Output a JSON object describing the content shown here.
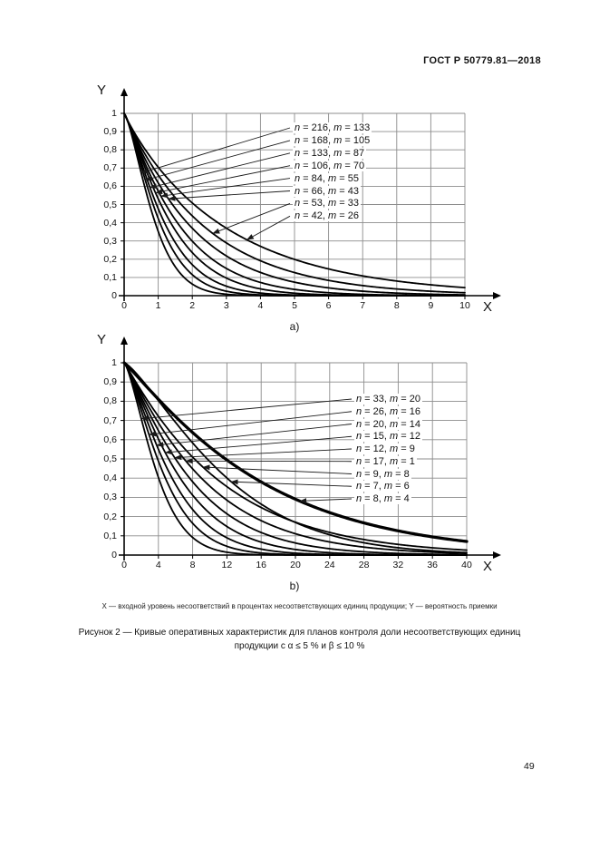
{
  "page": {
    "header": "ГОСТ Р 50779.81—2018",
    "footnote": "X — входной уровень несоответствий в процентах несоответствующих единиц продукции; Y — вероятность приемки",
    "figure_caption_line1": "Рисунок 2 — Кривые оперативных характеристик для планов контроля доли несоответствующих единиц",
    "figure_caption_line2": "продукции с α ≤ 5 % и β ≤ 10 %",
    "page_number": "49"
  },
  "colors": {
    "curve": "#000000",
    "grid": "#8c8c8c",
    "axis": "#000000",
    "callout": "#1a1a1a",
    "text": "#111111",
    "background": "#ffffff"
  },
  "chart_data": [
    {
      "id": "a",
      "type": "line",
      "sublabel": "a)",
      "x_axis_label": "X",
      "y_axis_label": "Y",
      "xlim": [
        0,
        10
      ],
      "ylim": [
        0,
        1
      ],
      "x_ticks": [
        0,
        1,
        2,
        3,
        4,
        5,
        6,
        7,
        8,
        9,
        10
      ],
      "y_ticks": [
        "0",
        "0,1",
        "0,2",
        "0,3",
        "0,4",
        "0,5",
        "0,6",
        "0,7",
        "0,8",
        "0,9",
        "1"
      ],
      "grid": true,
      "legend_position": "inside upper right, items connected to curves by arrows",
      "curve_model": "y = exp(-(x/a)^k); OC curve, y-probability of acceptance vs x-percent nonconforming",
      "series": [
        {
          "label": "n = 216, m = 133",
          "n": 216,
          "m": 133,
          "a": 0.97,
          "k": 1.4,
          "x_half": 0.75,
          "arrow_x": 0.5,
          "thick": false
        },
        {
          "label": "n = 168, m = 105",
          "n": 168,
          "m": 105,
          "a": 1.12,
          "k": 1.33,
          "x_half": 0.85,
          "arrow_x": 0.62,
          "thick": false
        },
        {
          "label": "n = 133, m = 87",
          "n": 133,
          "m": 87,
          "a": 1.27,
          "k": 1.26,
          "x_half": 0.95,
          "arrow_x": 0.76,
          "thick": false
        },
        {
          "label": "n = 106, m = 70",
          "n": 106,
          "m": 70,
          "a": 1.47,
          "k": 1.19,
          "x_half": 1.08,
          "arrow_x": 0.92,
          "thick": false
        },
        {
          "label": "n = 84, m = 55",
          "n": 84,
          "m": 55,
          "a": 1.69,
          "k": 1.12,
          "x_half": 1.22,
          "arrow_x": 1.08,
          "thick": false
        },
        {
          "label": "n = 66, m = 43",
          "n": 66,
          "m": 43,
          "a": 2.01,
          "k": 1.05,
          "x_half": 1.42,
          "arrow_x": 1.3,
          "thick": false
        },
        {
          "label": "n = 53, m = 33",
          "n": 53,
          "m": 33,
          "a": 2.42,
          "k": 1.0,
          "x_half": 1.68,
          "arrow_x": 2.6,
          "thick": false
        },
        {
          "label": "n = 42, m = 26",
          "n": 42,
          "m": 26,
          "a": 3.02,
          "k": 0.95,
          "x_half": 2.05,
          "arrow_x": 3.6,
          "thick": false
        }
      ]
    },
    {
      "id": "b",
      "type": "line",
      "sublabel": "b)",
      "x_axis_label": "X",
      "y_axis_label": "Y",
      "xlim": [
        0,
        40
      ],
      "ylim": [
        0,
        1
      ],
      "x_ticks": [
        0,
        4,
        8,
        12,
        16,
        20,
        24,
        28,
        32,
        36,
        40
      ],
      "y_ticks": [
        "0",
        "0,1",
        "0,2",
        "0,3",
        "0,4",
        "0,5",
        "0,6",
        "0,7",
        "0,8",
        "0,9",
        "1"
      ],
      "grid": true,
      "legend_position": "inside upper right, items connected to curves by arrows",
      "curve_model": "y = exp(-(x/a)^k); OC curve, y-probability of acceptance vs x-percent nonconforming",
      "series": [
        {
          "label": "n = 33, m = 20",
          "n": 33,
          "m": 20,
          "a": 4.29,
          "k": 1.4,
          "x_half": 3.3,
          "arrow_x": 2.0,
          "thick": false
        },
        {
          "label": "n = 26, m = 16",
          "n": 26,
          "m": 16,
          "a": 5.14,
          "k": 1.33,
          "x_half": 3.9,
          "arrow_x": 2.9,
          "thick": false
        },
        {
          "label": "n = 20, m = 14",
          "n": 20,
          "m": 14,
          "a": 6.0,
          "k": 1.27,
          "x_half": 4.5,
          "arrow_x": 3.8,
          "thick": false
        },
        {
          "label": "n = 15, m = 12",
          "n": 15,
          "m": 12,
          "a": 7.04,
          "k": 1.21,
          "x_half": 5.2,
          "arrow_x": 4.8,
          "thick": false
        },
        {
          "label": "n = 12, m = 9",
          "n": 12,
          "m": 9,
          "a": 8.25,
          "k": 1.15,
          "x_half": 6.0,
          "arrow_x": 5.9,
          "thick": false
        },
        {
          "label": "n = 17, m = 1",
          "n": 17,
          "m": 1,
          "a": 9.77,
          "k": 1.1,
          "x_half": 7.0,
          "arrow_x": 7.2,
          "thick": false
        },
        {
          "label": "n = 9, m = 8",
          "n": 9,
          "m": 8,
          "a": 11.63,
          "k": 1.05,
          "x_half": 8.2,
          "arrow_x": 9.2,
          "thick": false
        },
        {
          "label": "n = 7, m = 6",
          "n": 7,
          "m": 6,
          "a": 12.86,
          "k": 1.3,
          "x_half": 9.7,
          "arrow_x": 12.5,
          "thick": false
        },
        {
          "label": "n = 8, m = 4",
          "n": 8,
          "m": 4,
          "a": 16.5,
          "k": 1.1,
          "x_half": 11.8,
          "arrow_x": 20.5,
          "thick": true
        }
      ]
    }
  ]
}
